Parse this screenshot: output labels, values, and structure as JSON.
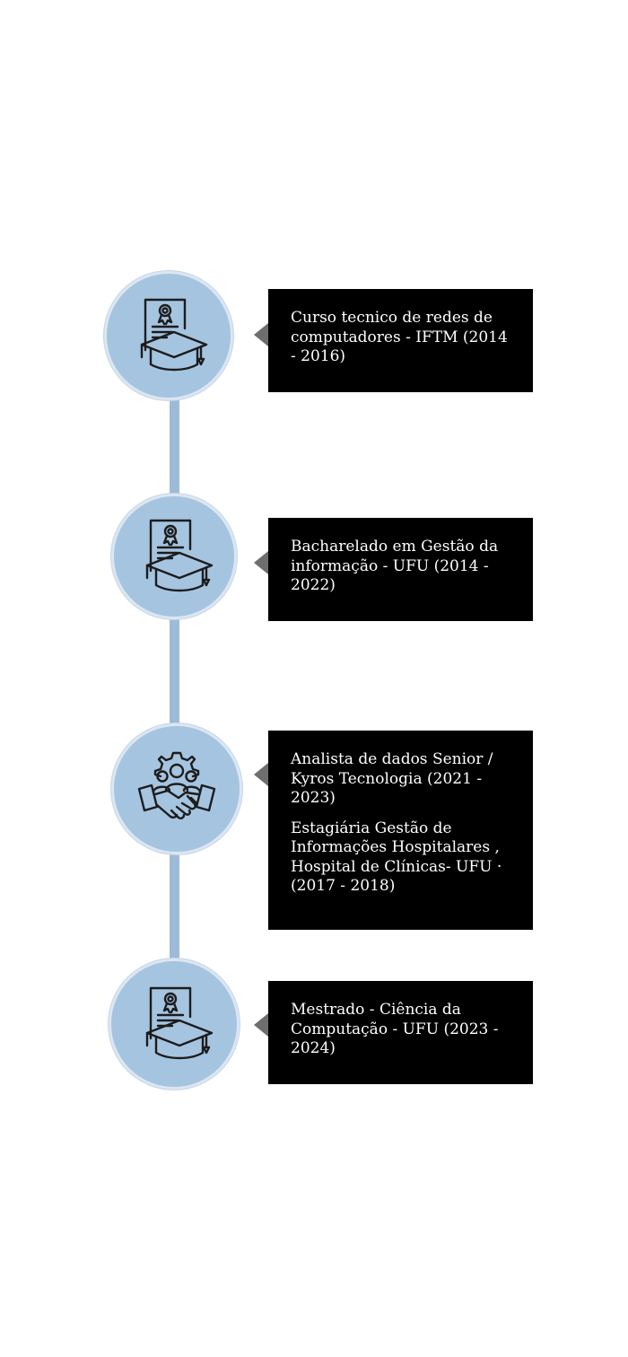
{
  "timeline": {
    "items": [
      {
        "icon": "diploma-graduation-cap-icon",
        "texts": [
          "Curso tecnico de redes de computadores - IFTM (2014 - 2016)"
        ]
      },
      {
        "icon": "diploma-graduation-cap-icon",
        "texts": [
          "Bacharelado em Gestão da informação - UFU (2014 - 2022)"
        ]
      },
      {
        "icon": "teamwork-handshake-gear-icon",
        "texts": [
          "Analista de dados Senior / Kyros Tecnologia (2021 - 2023)",
          "Estagiária Gestão de Informações Hospitalares , Hospital de Clínicas- UFU · (2017 - 2018)"
        ]
      },
      {
        "icon": "diploma-graduation-cap-icon",
        "texts": [
          "Mestrado - Ciência da Computação - UFU (2023 - 2024)"
        ]
      }
    ],
    "colors": {
      "node_fill": "#a5c4e0",
      "node_border": "#dbe6f2",
      "connector": "#9dbbd9",
      "card_background": "#000000",
      "card_text": "#ffffff",
      "pointer": "#6e6e6e",
      "icon_stroke": "#1c1c1c"
    }
  }
}
